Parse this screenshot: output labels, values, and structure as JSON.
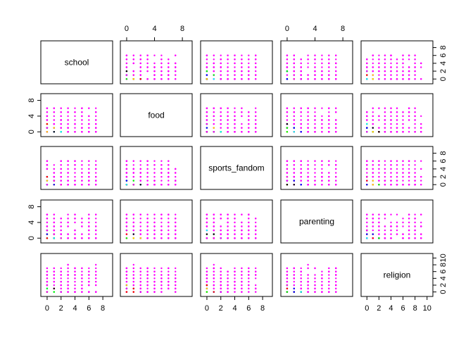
{
  "chart_data": {
    "type": "scatter",
    "variables": [
      "school",
      "food",
      "sports_fandom",
      "parenting",
      "religion"
    ],
    "axis_ticks": {
      "school": [
        0,
        2,
        4,
        6,
        8
      ],
      "food": [
        0,
        4,
        8
      ],
      "sports_fandom": [
        0,
        2,
        4,
        6,
        8
      ],
      "parenting": [
        0,
        4,
        8
      ],
      "religion": [
        0,
        2,
        4,
        6,
        8,
        10
      ]
    },
    "axis_ranges": {
      "school": [
        -0.5,
        9
      ],
      "food": [
        -0.5,
        9
      ],
      "sports_fandom": [
        -0.5,
        9
      ],
      "parenting": [
        -0.5,
        9
      ],
      "religion": [
        -0.5,
        10.5
      ]
    },
    "point_colors": [
      "#ff00ff",
      "#0000ff",
      "#ff0000",
      "#00ff00",
      "#00ffff",
      "#ffcc00",
      "#000000"
    ],
    "grid": false,
    "legend": "none"
  }
}
